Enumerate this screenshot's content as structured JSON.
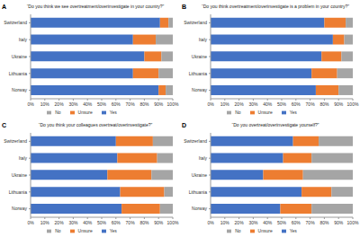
{
  "chart_data": [
    {
      "type": "bar",
      "orientation": "horizontal",
      "stacked": true,
      "grid": false,
      "legend": "bottom",
      "annotations": [
        "A"
      ],
      "title": "“Do you think we see overtreatment/overinvestigate in your country?”",
      "categories": [
        "Switzerland",
        "Italy",
        "Ukraine",
        "Lithuania",
        "Norway"
      ],
      "series": [
        {
          "name": "Yes",
          "color": "#4472c4",
          "values": [
            91,
            72,
            80,
            72,
            90
          ]
        },
        {
          "name": "Unsure",
          "color": "#ed7d31",
          "values": [
            6,
            16,
            12,
            18,
            5
          ]
        },
        {
          "name": "No",
          "color": "#a5a5a5",
          "values": [
            3,
            12,
            8,
            10,
            5
          ]
        }
      ],
      "xlim": [
        0,
        100
      ],
      "xticks": [
        {
          "value": 0,
          "label": "0%"
        },
        {
          "value": 10,
          "label": "10%"
        },
        {
          "value": 20,
          "label": "20%"
        },
        {
          "value": 30,
          "label": "30%"
        },
        {
          "value": 40,
          "label": "40%"
        },
        {
          "value": 50,
          "label": "50%"
        },
        {
          "value": 60,
          "label": "60%"
        },
        {
          "value": 70,
          "label": "70%"
        },
        {
          "value": 80,
          "label": "80%"
        },
        {
          "value": 90,
          "label": "90%"
        },
        {
          "value": 100,
          "label": "100%"
        }
      ]
    },
    {
      "type": "bar",
      "orientation": "horizontal",
      "stacked": true,
      "grid": false,
      "legend": "bottom",
      "annotations": [
        "B"
      ],
      "title": "“Do you think overtreatment/overinvestigate is a problem in your country?”",
      "categories": [
        "Switzerland",
        "Italy",
        "Ukraine",
        "Lithuania",
        "Norway"
      ],
      "series": [
        {
          "name": "Yes",
          "color": "#4472c4",
          "values": [
            80,
            86,
            78,
            71,
            74
          ]
        },
        {
          "name": "Unsure",
          "color": "#ed7d31",
          "values": [
            15,
            8,
            14,
            18,
            16
          ]
        },
        {
          "name": "No",
          "color": "#a5a5a5",
          "values": [
            5,
            6,
            8,
            11,
            10
          ]
        }
      ],
      "xlim": [
        0,
        100
      ],
      "xticks": [
        {
          "value": 0,
          "label": "0%"
        },
        {
          "value": 10,
          "label": "10%"
        },
        {
          "value": 20,
          "label": "20%"
        },
        {
          "value": 30,
          "label": "30%"
        },
        {
          "value": 40,
          "label": "40%"
        },
        {
          "value": 50,
          "label": "50%"
        },
        {
          "value": 60,
          "label": "60%"
        },
        {
          "value": 70,
          "label": "70%"
        },
        {
          "value": 80,
          "label": "80%"
        },
        {
          "value": 90,
          "label": "90%"
        },
        {
          "value": 100,
          "label": "100%"
        }
      ]
    },
    {
      "type": "bar",
      "orientation": "horizontal",
      "stacked": true,
      "grid": false,
      "legend": "bottom",
      "annotations": [
        "C"
      ],
      "title": "“Do you think your colleagues overtreat/overinvestigate?”",
      "categories": [
        "Switzerland",
        "Italy",
        "Ukraine",
        "Lithuania",
        "Norway"
      ],
      "series": [
        {
          "name": "Yes",
          "color": "#4472c4",
          "values": [
            60,
            61,
            54,
            63,
            64
          ]
        },
        {
          "name": "Unsure",
          "color": "#ed7d31",
          "values": [
            26,
            28,
            31,
            31,
            27
          ]
        },
        {
          "name": "No",
          "color": "#a5a5a5",
          "values": [
            14,
            11,
            15,
            6,
            9
          ]
        }
      ],
      "xlim": [
        0,
        100
      ],
      "xticks": [
        {
          "value": 0,
          "label": "0%"
        },
        {
          "value": 10,
          "label": "10%"
        },
        {
          "value": 20,
          "label": "20%"
        },
        {
          "value": 30,
          "label": "30%"
        },
        {
          "value": 40,
          "label": "40%"
        },
        {
          "value": 50,
          "label": "50%"
        },
        {
          "value": 60,
          "label": "60%"
        },
        {
          "value": 70,
          "label": "70%"
        },
        {
          "value": 80,
          "label": "80%"
        },
        {
          "value": 90,
          "label": "90%"
        },
        {
          "value": 100,
          "label": "100%"
        }
      ]
    },
    {
      "type": "bar",
      "orientation": "horizontal",
      "stacked": true,
      "grid": false,
      "legend": "bottom",
      "annotations": [
        "D"
      ],
      "title": "“Do you overtreat/overinvestigate yourself?”",
      "categories": [
        "Switzerland",
        "Italy",
        "Ukraine",
        "Lithuania",
        "Norway"
      ],
      "series": [
        {
          "name": "Yes",
          "color": "#4472c4",
          "values": [
            58,
            51,
            37,
            64,
            49
          ]
        },
        {
          "name": "Unsure",
          "color": "#ed7d31",
          "values": [
            18,
            20,
            28,
            21,
            22
          ]
        },
        {
          "name": "No",
          "color": "#a5a5a5",
          "values": [
            24,
            29,
            35,
            15,
            29
          ]
        }
      ],
      "xlim": [
        0,
        100
      ],
      "xticks": [
        {
          "value": 0,
          "label": "0%"
        },
        {
          "value": 10,
          "label": "10%"
        },
        {
          "value": 20,
          "label": "20%"
        },
        {
          "value": 30,
          "label": "30%"
        },
        {
          "value": 40,
          "label": "40%"
        },
        {
          "value": 50,
          "label": "50%"
        },
        {
          "value": 60,
          "label": "60%"
        },
        {
          "value": 70,
          "label": "70%"
        },
        {
          "value": 80,
          "label": "80%"
        },
        {
          "value": 90,
          "label": "90%"
        },
        {
          "value": 100,
          "label": "100%"
        }
      ]
    }
  ]
}
